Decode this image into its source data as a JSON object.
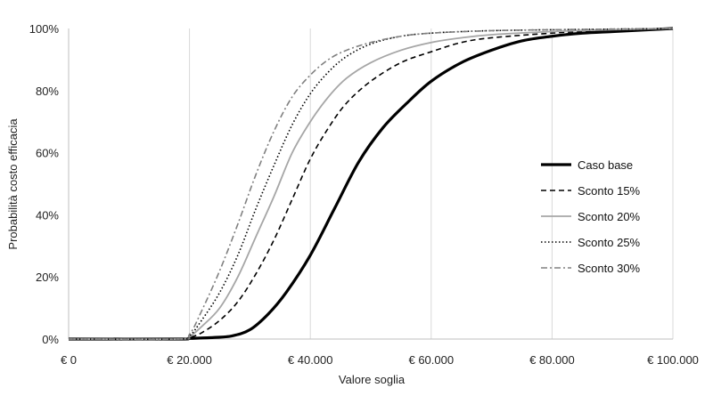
{
  "chart_data": {
    "type": "line",
    "title": "",
    "xlabel": "Valore soglia",
    "ylabel": "Probabilità costo efficacia",
    "xlim": [
      0,
      100000
    ],
    "ylim": [
      0,
      1
    ],
    "x_ticks": [
      0,
      20000,
      40000,
      60000,
      80000,
      100000
    ],
    "x_tick_labels": [
      "€ 0",
      "€ 20.000",
      "€ 40.000",
      "€ 60.000",
      "€ 80.000",
      "€ 100.000"
    ],
    "y_ticks": [
      0,
      0.2,
      0.4,
      0.6,
      0.8,
      1.0
    ],
    "y_tick_labels": [
      "0%",
      "20%",
      "40%",
      "60%",
      "80%",
      "100%"
    ],
    "grid": "vertical",
    "legend_position": "right",
    "series": [
      {
        "name": "Caso base",
        "color": "#000000",
        "style": "solid-thick",
        "x": [
          0,
          18000,
          20000,
          24000,
          27000,
          30000,
          33000,
          36000,
          40000,
          44000,
          48000,
          52000,
          56000,
          60000,
          65000,
          70000,
          75000,
          80000,
          85000,
          90000,
          95000,
          100000
        ],
        "y": [
          0,
          0,
          0.002,
          0.005,
          0.01,
          0.03,
          0.08,
          0.15,
          0.27,
          0.42,
          0.57,
          0.68,
          0.76,
          0.83,
          0.89,
          0.93,
          0.96,
          0.975,
          0.985,
          0.99,
          0.995,
          1.0
        ]
      },
      {
        "name": "Sconto 15%",
        "color": "#000000",
        "style": "dashed",
        "x": [
          0,
          18000,
          20000,
          22000,
          25000,
          28000,
          31000,
          34000,
          37000,
          40000,
          43000,
          46000,
          50000,
          55000,
          60000,
          65000,
          70000,
          80000,
          90000,
          100000
        ],
        "y": [
          0,
          0,
          0.005,
          0.02,
          0.06,
          0.12,
          0.21,
          0.32,
          0.45,
          0.58,
          0.68,
          0.76,
          0.83,
          0.89,
          0.925,
          0.955,
          0.97,
          0.985,
          0.995,
          1.0
        ]
      },
      {
        "name": "Sconto 20%",
        "color": "#a6a6a6",
        "style": "solid",
        "x": [
          0,
          18000,
          20000,
          22000,
          25000,
          28000,
          31000,
          34000,
          37000,
          40000,
          43000,
          46000,
          50000,
          55000,
          60000,
          65000,
          70000,
          80000,
          90000,
          100000
        ],
        "y": [
          0,
          0,
          0.008,
          0.04,
          0.1,
          0.2,
          0.33,
          0.46,
          0.6,
          0.7,
          0.78,
          0.84,
          0.89,
          0.93,
          0.955,
          0.97,
          0.98,
          0.99,
          0.996,
          1.0
        ]
      },
      {
        "name": "Sconto 25%",
        "color": "#000000",
        "style": "dotted",
        "x": [
          0,
          18000,
          20000,
          22000,
          25000,
          28000,
          31000,
          34000,
          37000,
          40000,
          43000,
          46000,
          50000,
          55000,
          60000,
          65000,
          70000,
          80000,
          90000,
          100000
        ],
        "y": [
          0,
          0,
          0.01,
          0.06,
          0.15,
          0.27,
          0.42,
          0.56,
          0.69,
          0.79,
          0.86,
          0.91,
          0.95,
          0.975,
          0.985,
          0.99,
          0.993,
          0.996,
          0.998,
          1.0
        ]
      },
      {
        "name": "Sconto 30%",
        "color": "#808080",
        "style": "dashdot",
        "x": [
          0,
          18000,
          20000,
          22000,
          25000,
          28000,
          31000,
          34000,
          37000,
          40000,
          43000,
          46000,
          50000,
          55000,
          60000,
          70000,
          80000,
          90000,
          100000
        ],
        "y": [
          0,
          0,
          0.015,
          0.09,
          0.22,
          0.37,
          0.53,
          0.67,
          0.78,
          0.85,
          0.9,
          0.93,
          0.955,
          0.975,
          0.985,
          0.993,
          0.996,
          0.998,
          1.0
        ]
      }
    ]
  }
}
